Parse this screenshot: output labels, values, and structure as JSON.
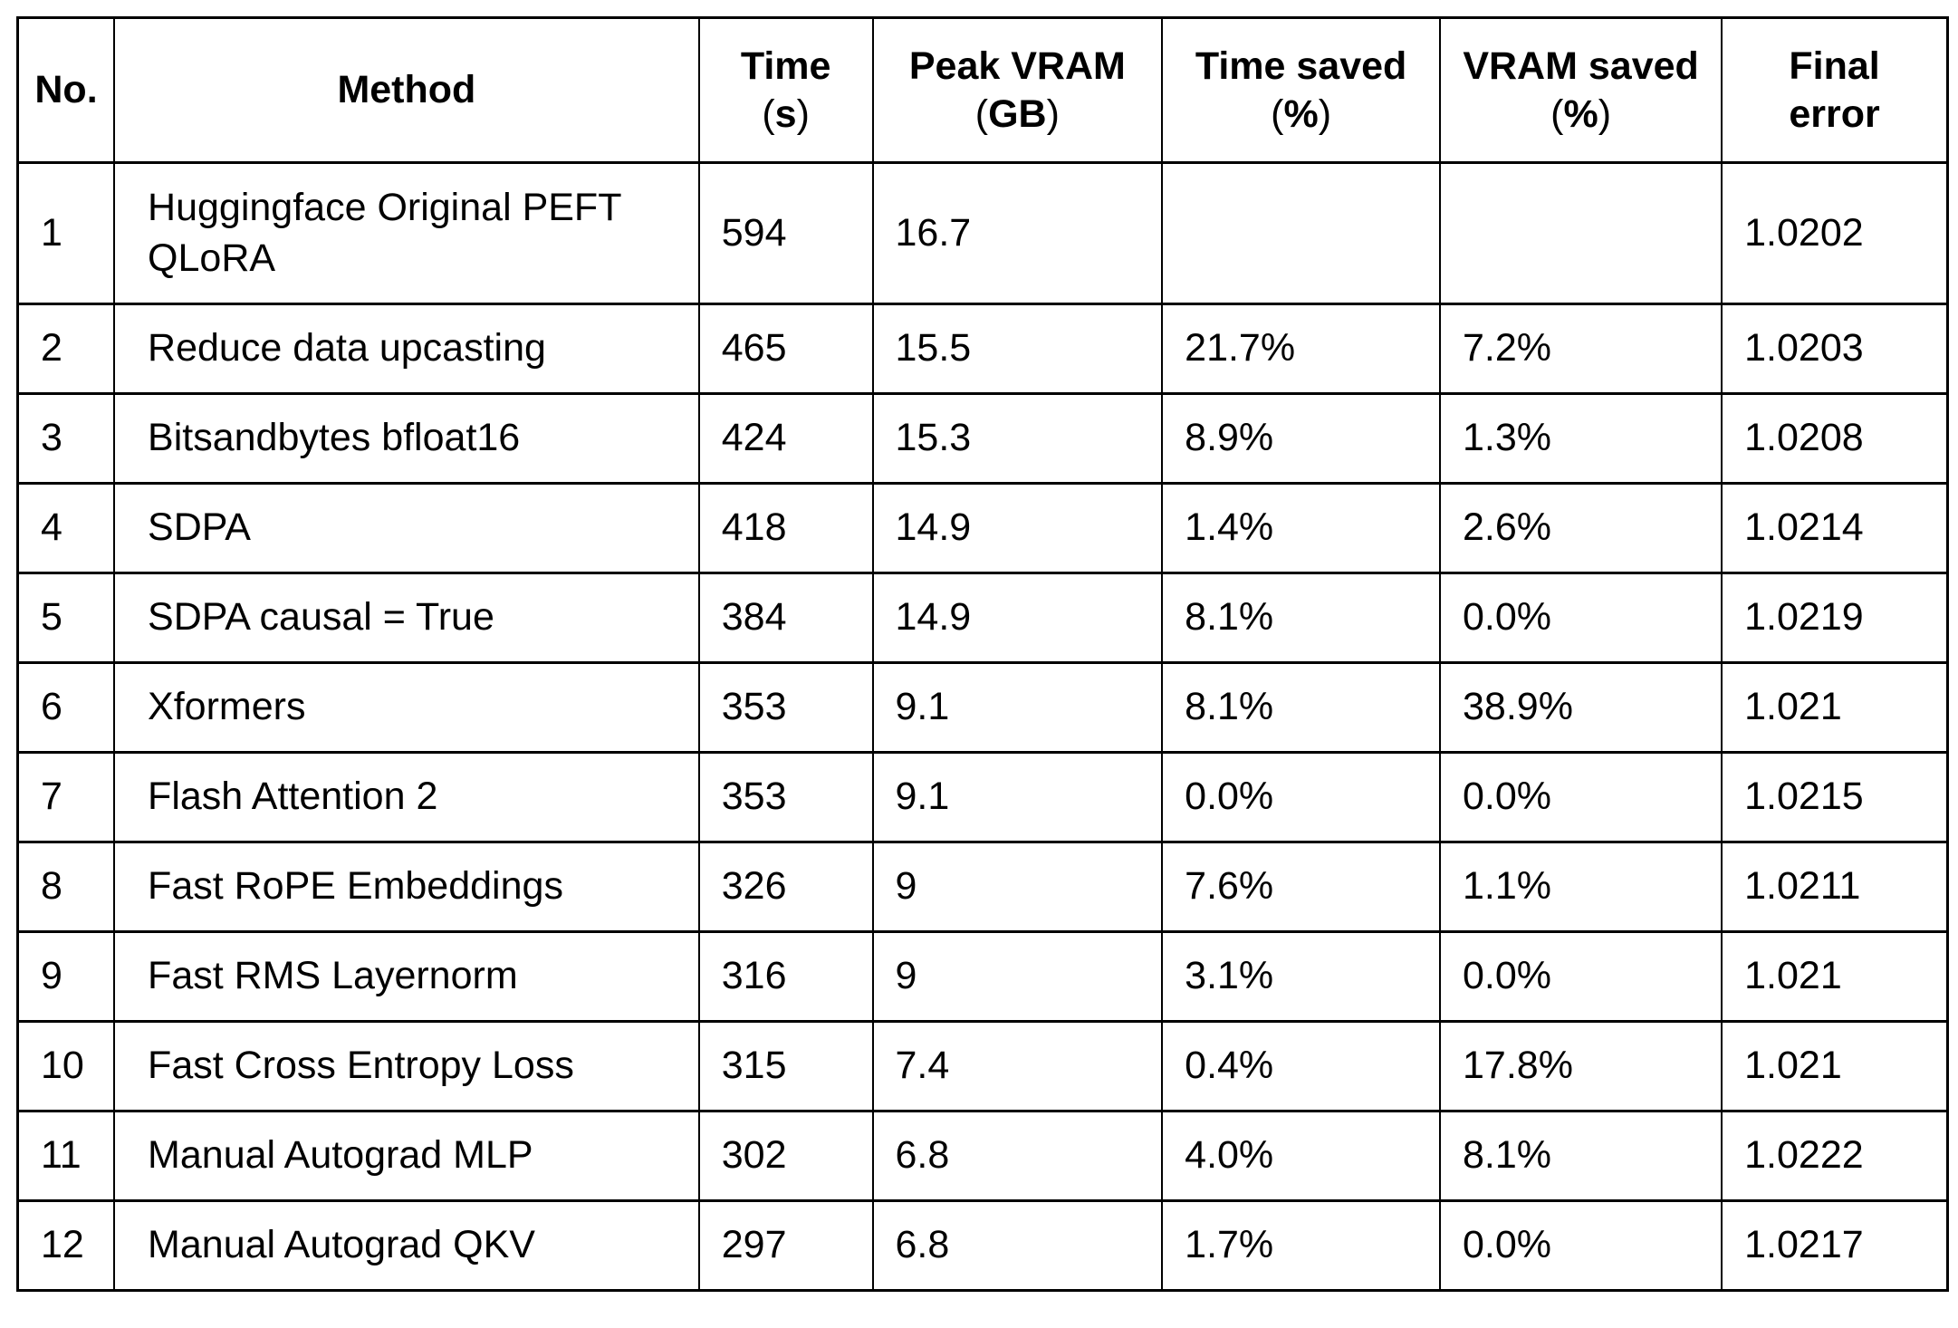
{
  "style": {
    "background": "#ffffff",
    "text_color": "#000000",
    "border_color": "#000000"
  },
  "chart_data": {
    "type": "table",
    "title": "",
    "columns": [
      {
        "key": "no",
        "label": "No.",
        "unit": ""
      },
      {
        "key": "method",
        "label": "Method",
        "unit": ""
      },
      {
        "key": "time",
        "label": "Time",
        "unit": "(s)"
      },
      {
        "key": "peak-vram",
        "label": "Peak VRAM",
        "unit": "(GB)"
      },
      {
        "key": "time-saved",
        "label": "Time saved",
        "unit": "(%)"
      },
      {
        "key": "vram-saved",
        "label": "VRAM saved",
        "unit": "(%)"
      },
      {
        "key": "final-error",
        "label": "Final\nerror",
        "unit": ""
      }
    ],
    "rows": [
      {
        "cells": [
          "1",
          "Huggingface Original PEFT QLoRA",
          "594",
          "16.7",
          "",
          "",
          "1.0202"
        ]
      },
      {
        "cells": [
          "2",
          "Reduce data upcasting",
          "465",
          "15.5",
          "21.7%",
          "7.2%",
          "1.0203"
        ]
      },
      {
        "cells": [
          "3",
          "Bitsandbytes bfloat16",
          "424",
          "15.3",
          "8.9%",
          "1.3%",
          "1.0208"
        ]
      },
      {
        "cells": [
          "4",
          "SDPA",
          "418",
          "14.9",
          "1.4%",
          "2.6%",
          "1.0214"
        ]
      },
      {
        "cells": [
          "5",
          "SDPA causal = True",
          "384",
          "14.9",
          "8.1%",
          "0.0%",
          "1.0219"
        ]
      },
      {
        "cells": [
          "6",
          "Xformers",
          "353",
          "9.1",
          "8.1%",
          "38.9%",
          "1.021"
        ]
      },
      {
        "cells": [
          "7",
          "Flash Attention 2",
          "353",
          "9.1",
          "0.0%",
          "0.0%",
          "1.0215"
        ]
      },
      {
        "cells": [
          "8",
          "Fast RoPE Embeddings",
          "326",
          "9",
          "7.6%",
          "1.1%",
          "1.0211"
        ]
      },
      {
        "cells": [
          "9",
          "Fast RMS Layernorm",
          "316",
          "9",
          "3.1%",
          "0.0%",
          "1.021"
        ]
      },
      {
        "cells": [
          "10",
          "Fast Cross Entropy Loss",
          "315",
          "7.4",
          "0.4%",
          "17.8%",
          "1.021"
        ]
      },
      {
        "cells": [
          "11",
          "Manual Autograd MLP",
          "302",
          "6.8",
          "4.0%",
          "8.1%",
          "1.0222"
        ]
      },
      {
        "cells": [
          "12",
          "Manual Autograd QKV",
          "297",
          "6.8",
          "1.7%",
          "0.0%",
          "1.0217"
        ]
      }
    ]
  }
}
